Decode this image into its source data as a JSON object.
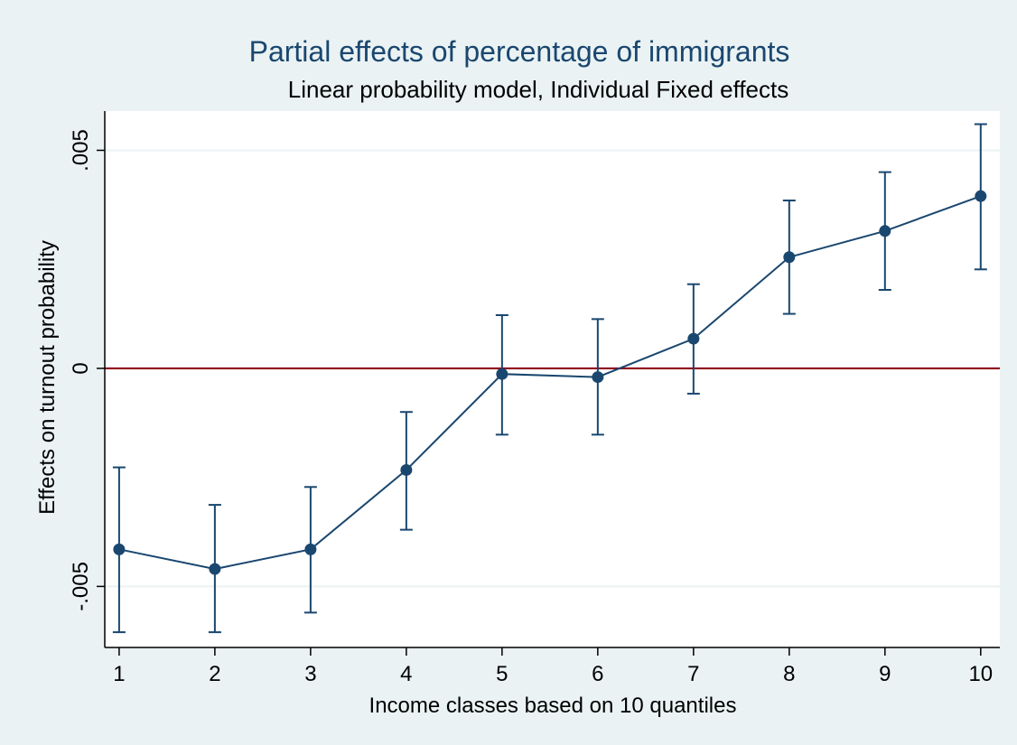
{
  "chart_data": {
    "type": "line",
    "title": "Partial effects of percentage of immigrants",
    "subtitle": "Linear probability model, Individual Fixed effects",
    "xlabel": "Income classes based on 10 quantiles",
    "ylabel": "Effects on turnout probability",
    "x": [
      1,
      2,
      3,
      4,
      5,
      6,
      7,
      8,
      9,
      10
    ],
    "x_tick_labels": [
      "1",
      "2",
      "3",
      "4",
      "5",
      "6",
      "7",
      "8",
      "9",
      "10"
    ],
    "series": [
      {
        "values": [
          -0.00415,
          -0.0046,
          -0.00415,
          -0.00233,
          -0.00013,
          -0.0002,
          0.00068,
          0.00255,
          0.00315,
          0.00395
        ],
        "ci_lower": [
          -0.00605,
          -0.00605,
          -0.0056,
          -0.0037,
          -0.00152,
          -0.00152,
          -0.00058,
          0.00125,
          0.0018,
          0.00227
        ],
        "ci_upper": [
          -0.00227,
          -0.00313,
          -0.00272,
          -0.001,
          0.00122,
          0.00113,
          0.00193,
          0.00385,
          0.0045,
          0.0056
        ],
        "color": "#1a476f"
      }
    ],
    "reference_line": {
      "y": 0,
      "color": "#90001c"
    },
    "y_ticks": [
      -0.005,
      0,
      0.005
    ],
    "y_tick_labels": [
      "-.005",
      "0",
      ".005"
    ],
    "xlim": [
      0.85,
      10.2
    ],
    "ylim": [
      -0.0064,
      0.0059
    ],
    "grid": true,
    "background_color": "#eaf2f3",
    "plot_background_color": "#ffffff"
  }
}
